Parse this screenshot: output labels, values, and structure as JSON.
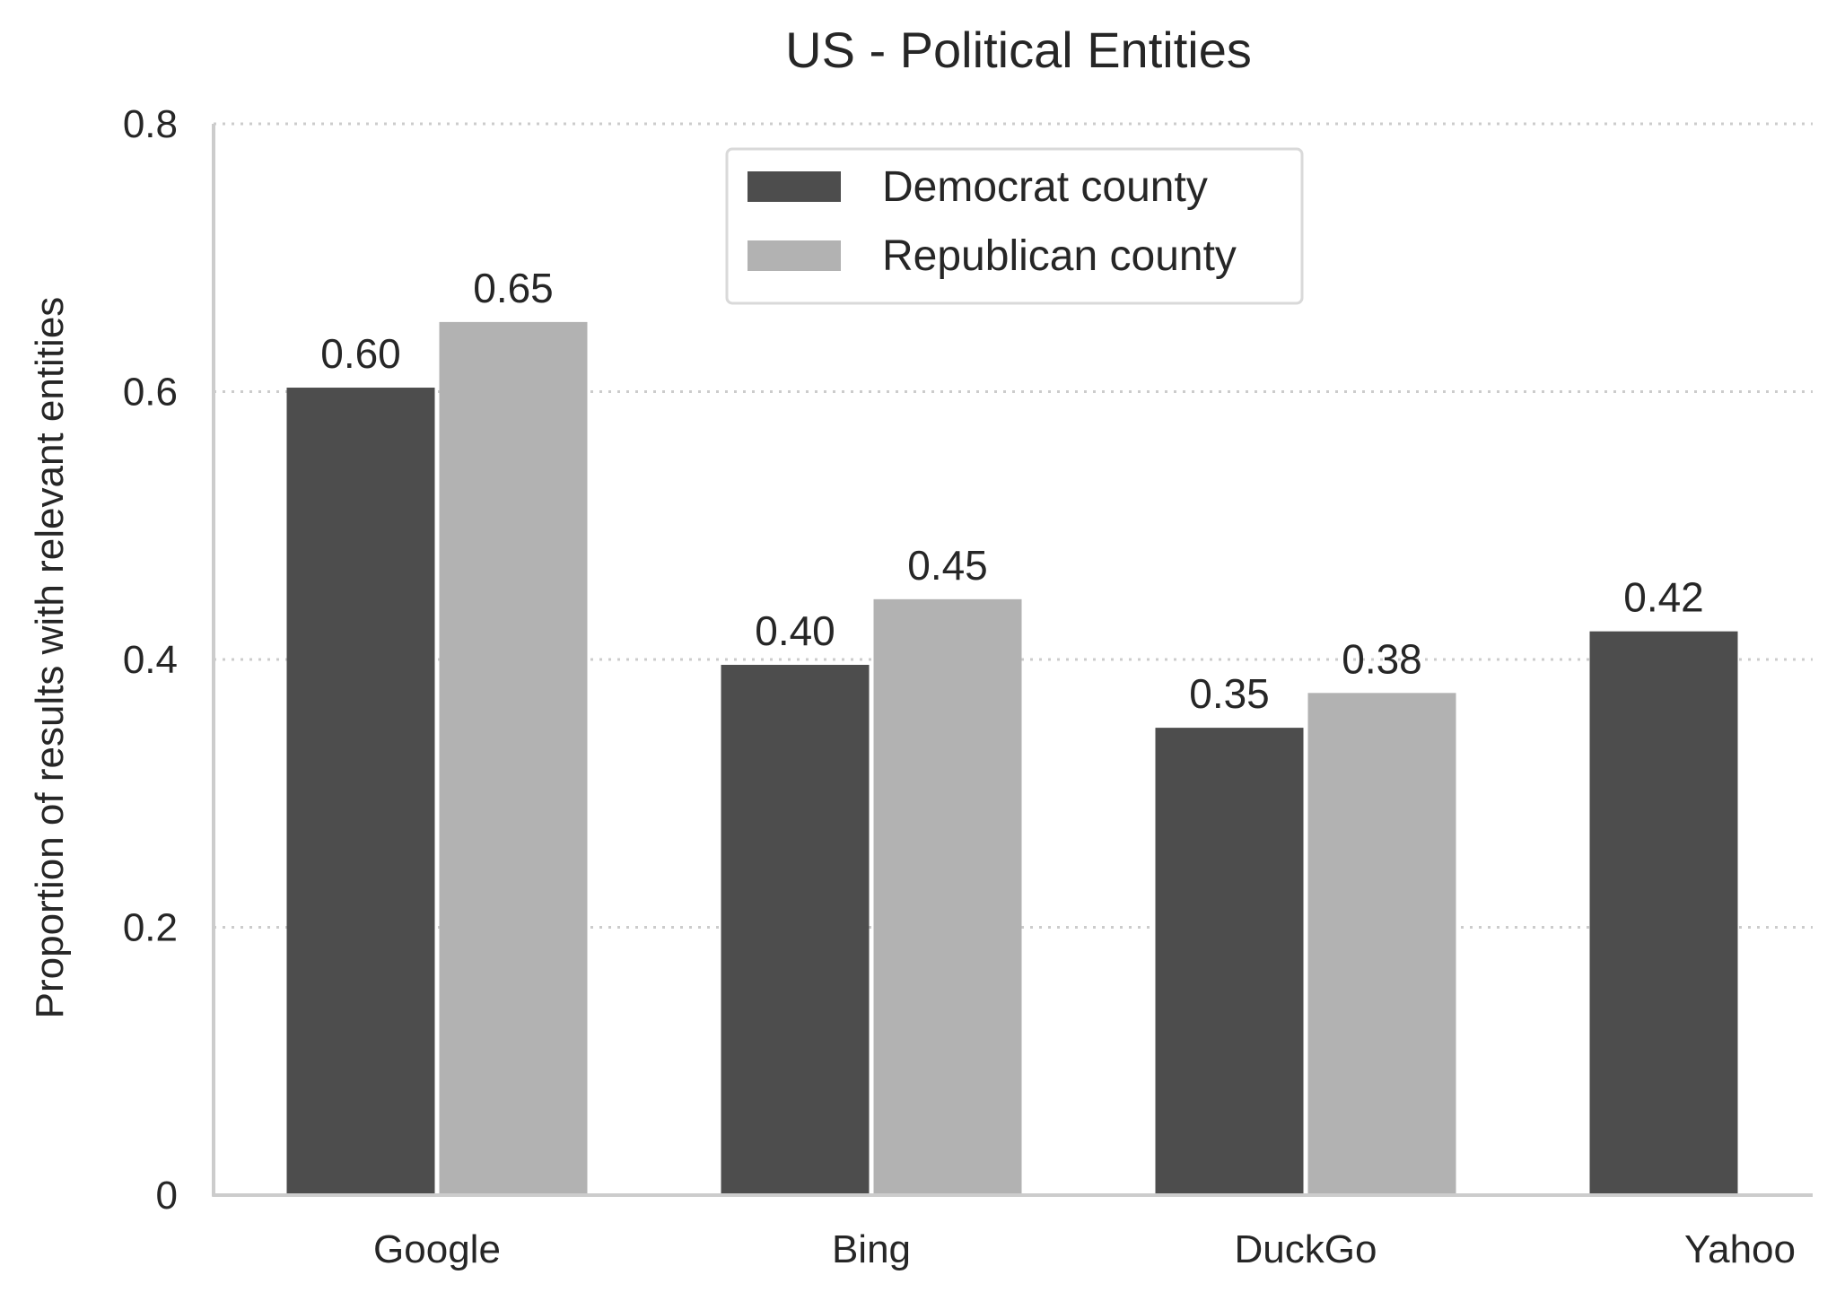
{
  "chart_data": {
    "type": "bar",
    "title": "US - Political Entities",
    "xlabel": "",
    "ylabel": "Proportion of results with relevant entities",
    "ylim": [
      0,
      0.8
    ],
    "yticks": [
      0,
      0.2,
      0.4,
      0.6,
      0.8
    ],
    "ytick_labels": [
      "0",
      "0.2",
      "0.4",
      "0.6",
      "0.8"
    ],
    "categories": [
      "Google",
      "Bing",
      "DuckGo",
      "Yahoo"
    ],
    "series": [
      {
        "name": "Democrat county",
        "color": "#4d4d4d",
        "values": [
          0.603,
          0.396,
          0.349,
          0.421
        ],
        "labels": [
          "0.60",
          "0.40",
          "0.35",
          "0.42"
        ]
      },
      {
        "name": "Republican county",
        "color": "#b2b2b2",
        "values": [
          0.652,
          0.445,
          0.375,
          null
        ],
        "labels": [
          "0.65",
          "0.45",
          "0.38",
          null
        ]
      }
    ],
    "grid": "y-dotted",
    "legend_position": "top-center"
  }
}
